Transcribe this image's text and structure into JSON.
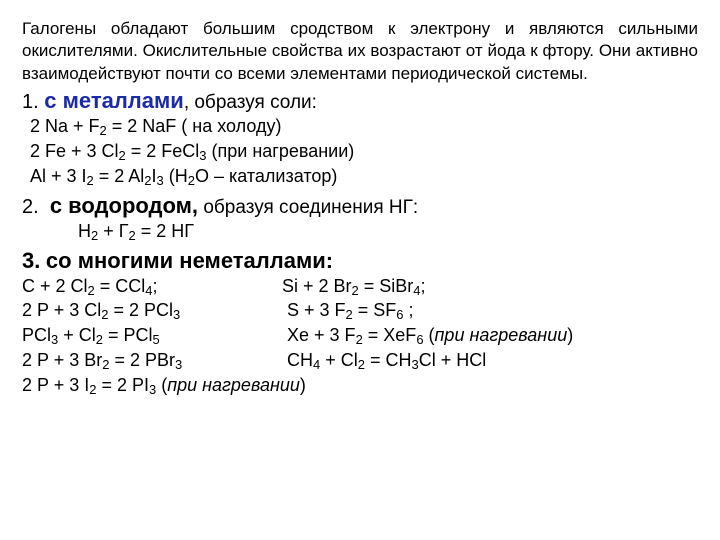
{
  "intro": "Галогены обладают большим сродством к электрону и являются сильными окислителями. Окислительные свойства их возрастают от йода к фтору. Они активно взаимодействуют почти со всеми элементами периодической системы.",
  "sections": {
    "s1": {
      "num": "1.",
      "bold": "с металлами",
      "rest": ", образуя соли:"
    },
    "s2": {
      "num": "2.",
      "bold": "с водородом,",
      "rest": " образуя соединения НГ:"
    },
    "s3": {
      "num": "3.",
      "bold": "со многими неметаллами:"
    }
  },
  "eq": {
    "m1a": "2 Na + F",
    "m1b": " = 2 NaF ( на холоду)",
    "m2a": "2 Fe + 3 Cl",
    "m2b": " = 2 FeCl",
    "m2c": " (при нагревании)",
    "m3a": "Al + 3 I",
    "m3b": " = 2 Al",
    "m3c": "I",
    "m3d": " (H",
    "m3e": "O – катализатор)",
    "h1a": "H",
    "h1b": " + Г",
    "h1c": " = 2 НГ",
    "n1La": "C + 2 Cl",
    "n1Lb": " = CCl",
    "n1Lc": ";",
    "n1Ra": "Si + 2 Br",
    "n1Rb": " = SiBr",
    "n1Rc": ";",
    "n2La": "2 P + 3 Cl",
    "n2Lb": " = 2 PCl",
    "n2Ra": "S + 3 F",
    "n2Rb": " = SF",
    "n2Rc": " ;",
    "n3La": "PCl",
    "n3Lb": " + Cl",
    "n3Lc": " = PCl",
    "n3Ra": "Xe + 3 F",
    "n3Rb": " = XeF",
    "n3Rc": " (",
    "n3Rd": "при нагревании",
    "n3Re": ")",
    "n4La": "2 P + 3 Br",
    "n4Lb": " = 2 PBr",
    "n4Ra": "CH",
    "n4Rb": " + Cl",
    "n4Rc": " = CH",
    "n4Rd": "Cl + HCl",
    "n5La": "2 P + 3 I",
    "n5Lb": " = 2 PI",
    "n5Lc": " (",
    "n5Ld": "при нагревании",
    "n5Le": ")"
  },
  "sub": {
    "2": "2",
    "3": "3",
    "4": "4",
    "5": "5",
    "6": "6"
  }
}
